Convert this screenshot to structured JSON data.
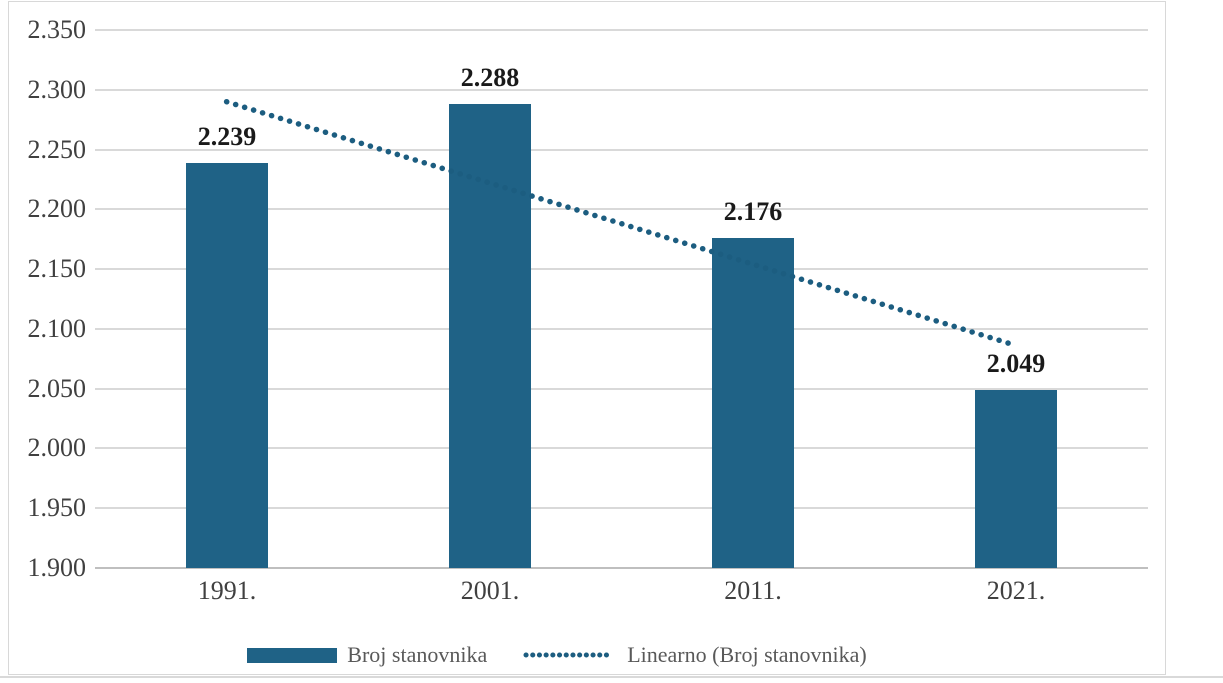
{
  "chart_data": {
    "type": "bar",
    "title": "",
    "xlabel": "",
    "ylabel": "",
    "categories": [
      "1991.",
      "2001.",
      "2011.",
      "2021."
    ],
    "values": [
      2239,
      2288,
      2176,
      2049
    ],
    "ylim": [
      1900,
      2350
    ],
    "y_tick_step": 50,
    "y_tick_values": [
      2350,
      2300,
      2250,
      2200,
      2150,
      2100,
      2050,
      2000,
      1950,
      1900
    ],
    "y_tick_labels": [
      "2.350",
      "2.300",
      "2.250",
      "2.200",
      "2.150",
      "2.100",
      "2.050",
      "2.000",
      "1.950",
      "1.900"
    ],
    "grid": true,
    "legend_position": "bottom",
    "series": [
      {
        "name": "Broj stanovnika",
        "type": "bar",
        "values": [
          2239,
          2288,
          2176,
          2049
        ],
        "data_labels": [
          "2.239",
          "2.288",
          "2.176",
          "2.049"
        ]
      },
      {
        "name": "Linearno (Broj stanovnika)",
        "type": "trendline",
        "style": "dotted",
        "endpoint_values": [
          2290,
          2086
        ]
      }
    ]
  },
  "colors": {
    "bar": "#1f6286",
    "trend": "#1c5d80",
    "gridline": "#d9d9d9",
    "axis_line": "#bfbfbf",
    "tick_text": "#404040",
    "data_label": "#1a1a1a",
    "legend_text": "#595959",
    "frame_border": "#d8d8d8"
  }
}
